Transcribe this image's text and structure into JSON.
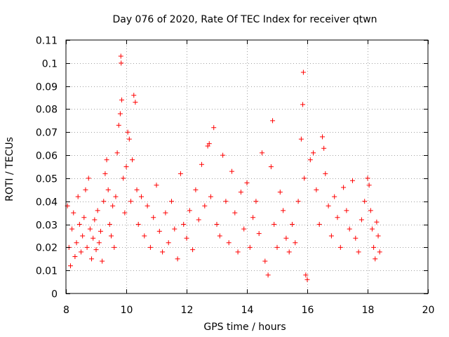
{
  "chart_data": {
    "type": "scatter",
    "title": "Day 076 of 2020, Rate Of TEC Index for receiver qtwn",
    "xlabel": "GPS time / hours",
    "ylabel": "ROTI / TECUs",
    "xlim": [
      8,
      20
    ],
    "ylim": [
      0,
      0.11
    ],
    "xticks": [
      8,
      10,
      12,
      14,
      16,
      18,
      20
    ],
    "xtick_labels": [
      "8",
      "10",
      "12",
      "14",
      "16",
      "18",
      "20"
    ],
    "yticks": [
      0,
      0.01,
      0.02,
      0.03,
      0.04,
      0.05,
      0.06,
      0.07,
      0.08,
      0.09,
      0.1,
      0.11
    ],
    "ytick_labels": [
      "0",
      "0.01",
      "0.02",
      "0.03",
      "0.04",
      "0.05",
      "0.06",
      "0.07",
      "0.08",
      "0.09",
      "0.1",
      "0.11"
    ],
    "grid": true,
    "marker": "+",
    "color": "#ff0000",
    "series": [
      {
        "values": [
          [
            8.05,
            0.038
          ],
          [
            8.1,
            0.02
          ],
          [
            8.15,
            0.012
          ],
          [
            8.2,
            0.028
          ],
          [
            8.25,
            0.035
          ],
          [
            8.3,
            0.016
          ],
          [
            8.35,
            0.022
          ],
          [
            8.4,
            0.042
          ],
          [
            8.45,
            0.03
          ],
          [
            8.5,
            0.018
          ],
          [
            8.55,
            0.025
          ],
          [
            8.6,
            0.033
          ],
          [
            8.65,
            0.045
          ],
          [
            8.7,
            0.02
          ],
          [
            8.75,
            0.05
          ],
          [
            8.8,
            0.028
          ],
          [
            8.85,
            0.015
          ],
          [
            8.9,
            0.024
          ],
          [
            8.95,
            0.032
          ],
          [
            9.0,
            0.019
          ],
          [
            9.05,
            0.036
          ],
          [
            9.1,
            0.022
          ],
          [
            9.15,
            0.027
          ],
          [
            9.2,
            0.014
          ],
          [
            9.25,
            0.04
          ],
          [
            9.3,
            0.052
          ],
          [
            9.35,
            0.058
          ],
          [
            9.4,
            0.045
          ],
          [
            9.45,
            0.03
          ],
          [
            9.5,
            0.025
          ],
          [
            9.55,
            0.038
          ],
          [
            9.6,
            0.02
          ],
          [
            9.65,
            0.042
          ],
          [
            9.7,
            0.061
          ],
          [
            9.75,
            0.073
          ],
          [
            9.8,
            0.078
          ],
          [
            9.82,
            0.103
          ],
          [
            9.83,
            0.1
          ],
          [
            9.85,
            0.084
          ],
          [
            9.9,
            0.05
          ],
          [
            9.95,
            0.035
          ],
          [
            10.0,
            0.055
          ],
          [
            10.05,
            0.07
          ],
          [
            10.1,
            0.067
          ],
          [
            10.15,
            0.04
          ],
          [
            10.2,
            0.058
          ],
          [
            10.25,
            0.086
          ],
          [
            10.3,
            0.083
          ],
          [
            10.35,
            0.045
          ],
          [
            10.4,
            0.03
          ],
          [
            10.5,
            0.042
          ],
          [
            10.6,
            0.025
          ],
          [
            10.7,
            0.038
          ],
          [
            10.8,
            0.02
          ],
          [
            10.9,
            0.033
          ],
          [
            11.0,
            0.047
          ],
          [
            11.1,
            0.027
          ],
          [
            11.2,
            0.018
          ],
          [
            11.3,
            0.035
          ],
          [
            11.4,
            0.022
          ],
          [
            11.5,
            0.04
          ],
          [
            11.6,
            0.028
          ],
          [
            11.7,
            0.015
          ],
          [
            11.8,
            0.052
          ],
          [
            11.9,
            0.03
          ],
          [
            12.0,
            0.024
          ],
          [
            12.1,
            0.036
          ],
          [
            12.2,
            0.019
          ],
          [
            12.3,
            0.045
          ],
          [
            12.4,
            0.032
          ],
          [
            12.5,
            0.056
          ],
          [
            12.6,
            0.038
          ],
          [
            12.7,
            0.064
          ],
          [
            12.75,
            0.065
          ],
          [
            12.8,
            0.042
          ],
          [
            12.9,
            0.072
          ],
          [
            13.0,
            0.03
          ],
          [
            13.1,
            0.025
          ],
          [
            13.2,
            0.06
          ],
          [
            13.3,
            0.04
          ],
          [
            13.4,
            0.022
          ],
          [
            13.5,
            0.053
          ],
          [
            13.6,
            0.035
          ],
          [
            13.7,
            0.018
          ],
          [
            13.8,
            0.044
          ],
          [
            13.9,
            0.028
          ],
          [
            14.0,
            0.048
          ],
          [
            14.1,
            0.02
          ],
          [
            14.2,
            0.033
          ],
          [
            14.3,
            0.04
          ],
          [
            14.4,
            0.026
          ],
          [
            14.5,
            0.061
          ],
          [
            14.6,
            0.014
          ],
          [
            14.7,
            0.008
          ],
          [
            14.8,
            0.055
          ],
          [
            14.85,
            0.075
          ],
          [
            14.9,
            0.03
          ],
          [
            15.0,
            0.02
          ],
          [
            15.1,
            0.044
          ],
          [
            15.2,
            0.036
          ],
          [
            15.3,
            0.024
          ],
          [
            15.4,
            0.018
          ],
          [
            15.5,
            0.03
          ],
          [
            15.6,
            0.022
          ],
          [
            15.7,
            0.04
          ],
          [
            15.8,
            0.067
          ],
          [
            15.85,
            0.082
          ],
          [
            15.87,
            0.096
          ],
          [
            15.9,
            0.05
          ],
          [
            15.95,
            0.008
          ],
          [
            16.0,
            0.006
          ],
          [
            16.1,
            0.058
          ],
          [
            16.2,
            0.061
          ],
          [
            16.3,
            0.045
          ],
          [
            16.4,
            0.03
          ],
          [
            16.5,
            0.068
          ],
          [
            16.55,
            0.063
          ],
          [
            16.6,
            0.052
          ],
          [
            16.7,
            0.038
          ],
          [
            16.8,
            0.025
          ],
          [
            16.9,
            0.042
          ],
          [
            17.0,
            0.033
          ],
          [
            17.1,
            0.02
          ],
          [
            17.2,
            0.046
          ],
          [
            17.3,
            0.036
          ],
          [
            17.4,
            0.028
          ],
          [
            17.5,
            0.049
          ],
          [
            17.6,
            0.024
          ],
          [
            17.7,
            0.018
          ],
          [
            17.8,
            0.032
          ],
          [
            17.9,
            0.04
          ],
          [
            18.0,
            0.05
          ],
          [
            18.05,
            0.047
          ],
          [
            18.1,
            0.036
          ],
          [
            18.15,
            0.028
          ],
          [
            18.2,
            0.02
          ],
          [
            18.25,
            0.015
          ],
          [
            18.3,
            0.031
          ],
          [
            18.35,
            0.025
          ],
          [
            18.4,
            0.018
          ]
        ]
      }
    ]
  }
}
